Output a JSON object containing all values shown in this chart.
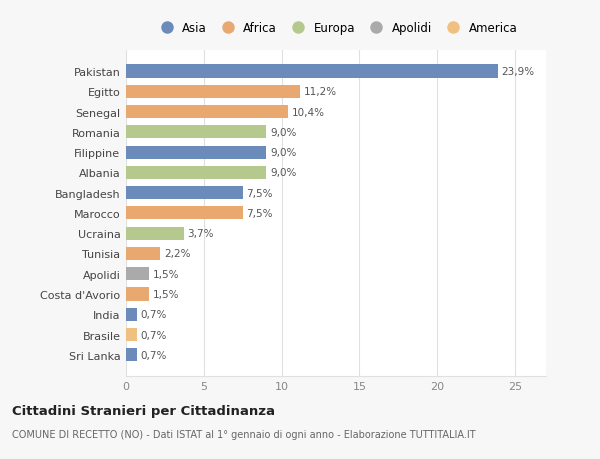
{
  "categories": [
    "Sri Lanka",
    "Brasile",
    "India",
    "Costa d'Avorio",
    "Apolidi",
    "Tunisia",
    "Ucraina",
    "Marocco",
    "Bangladesh",
    "Albania",
    "Filippine",
    "Romania",
    "Senegal",
    "Egitto",
    "Pakistan"
  ],
  "values": [
    0.7,
    0.7,
    0.7,
    1.5,
    1.5,
    2.2,
    3.7,
    7.5,
    7.5,
    9.0,
    9.0,
    9.0,
    10.4,
    11.2,
    23.9
  ],
  "labels": [
    "0,7%",
    "0,7%",
    "0,7%",
    "1,5%",
    "1,5%",
    "2,2%",
    "3,7%",
    "7,5%",
    "7,5%",
    "9,0%",
    "9,0%",
    "9,0%",
    "10,4%",
    "11,2%",
    "23,9%"
  ],
  "colors": [
    "#6b8cba",
    "#f0c080",
    "#6b8cba",
    "#e8a870",
    "#aaaaaa",
    "#e8a870",
    "#b5c98e",
    "#e8a870",
    "#6b8cba",
    "#b5c98e",
    "#6b8cba",
    "#b5c98e",
    "#e8a870",
    "#e8a870",
    "#6b8cba"
  ],
  "legend_labels": [
    "Asia",
    "Africa",
    "Europa",
    "Apolidi",
    "America"
  ],
  "legend_colors": [
    "#6b8cba",
    "#e8a870",
    "#b5c98e",
    "#aaaaaa",
    "#f0c080"
  ],
  "title": "Cittadini Stranieri per Cittadinanza",
  "subtitle": "COMUNE DI RECETTO (NO) - Dati ISTAT al 1° gennaio di ogni anno - Elaborazione TUTTITALIA.IT",
  "xlim": [
    0,
    27
  ],
  "xticks": [
    0,
    5,
    10,
    15,
    20,
    25
  ],
  "background_color": "#f7f7f7",
  "bar_background": "#ffffff",
  "grid_color": "#e0e0e0"
}
